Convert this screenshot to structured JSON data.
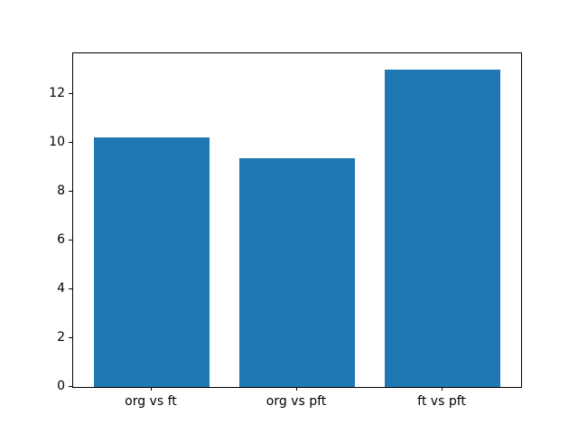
{
  "chart_data": {
    "type": "bar",
    "title": "",
    "xlabel": "",
    "ylabel": "",
    "categories": [
      "org vs ft",
      "org vs pft",
      "ft vs pft"
    ],
    "values": [
      10.2,
      9.35,
      13.0
    ],
    "bar_color": "#1f77b4",
    "background_color": "#ffffff",
    "spine_color": "#000000",
    "ylim": [
      0,
      13.65
    ],
    "yticks": [
      0,
      2,
      4,
      6,
      8,
      10,
      12
    ],
    "bar_width_fraction": 0.8,
    "grid": false,
    "legend": null
  }
}
